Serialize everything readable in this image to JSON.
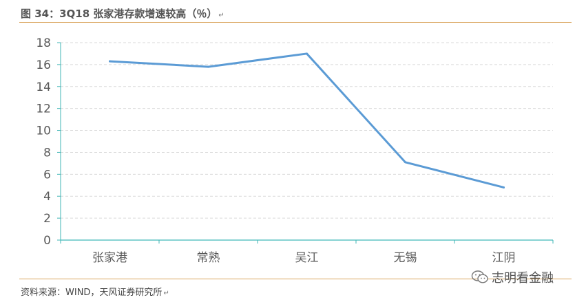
{
  "title": "图 34：3Q18 张家港存款增速较高（％）",
  "title_mark": "↵",
  "source": "资料来源：WIND，天风证券研究所",
  "source_mark": "↵",
  "watermark": {
    "text": "志明看金融",
    "icon": "wechat-icon"
  },
  "colors": {
    "line": "#5b9bd5",
    "axis": "#3fb6b6",
    "grid": "#d9d9d9",
    "rule": "#d9a35a"
  },
  "chart_data": {
    "type": "line",
    "title": "3Q18 张家港存款增速较高（％）",
    "xlabel": "",
    "ylabel": "",
    "categories": [
      "张家港",
      "常熟",
      "吴江",
      "无锡",
      "江阴"
    ],
    "values": [
      16.3,
      15.8,
      17.0,
      7.1,
      4.8
    ],
    "ylim": [
      0,
      18
    ],
    "yticks": [
      0,
      2,
      4,
      6,
      8,
      10,
      12,
      14,
      16,
      18
    ],
    "grid": true,
    "grid_style": "dashed",
    "legend": "none"
  }
}
